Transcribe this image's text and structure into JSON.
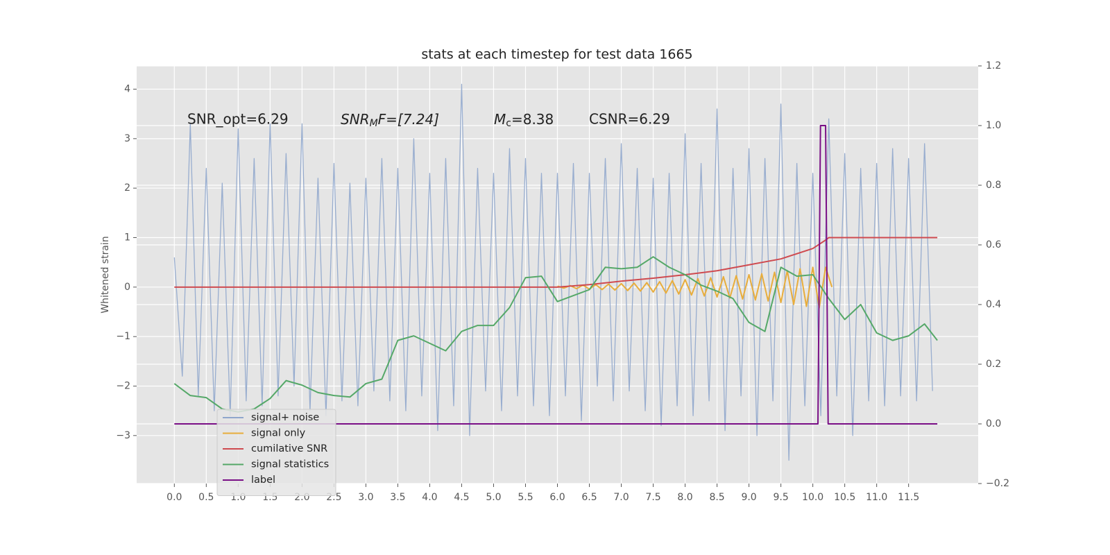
{
  "chart_data": {
    "type": "line",
    "title": "stats at each timestep for test data 1665",
    "ylabel": "Whitened strain",
    "xlim": [
      -0.59,
      12.59
    ],
    "ylim": [
      -3.97,
      4.47
    ],
    "y2lim": [
      -0.2,
      1.2
    ],
    "grid": true,
    "legend": "lower left",
    "xticks": [
      {
        "value": 0,
        "label": "0.0"
      },
      {
        "value": 0.5,
        "label": "0.5"
      },
      {
        "value": 1,
        "label": "1.0"
      },
      {
        "value": 1.5,
        "label": "1.5"
      },
      {
        "value": 2,
        "label": "2.0"
      },
      {
        "value": 2.5,
        "label": "2.5"
      },
      {
        "value": 3,
        "label": "3.0"
      },
      {
        "value": 3.5,
        "label": "3.5"
      },
      {
        "value": 4,
        "label": "4.0"
      },
      {
        "value": 4.5,
        "label": "4.5"
      },
      {
        "value": 5,
        "label": "5.0"
      },
      {
        "value": 5.5,
        "label": "5.5"
      },
      {
        "value": 6,
        "label": "6.0"
      },
      {
        "value": 6.5,
        "label": "6.5"
      },
      {
        "value": 7,
        "label": "7.0"
      },
      {
        "value": 7.5,
        "label": "7.5"
      },
      {
        "value": 8,
        "label": "8.0"
      },
      {
        "value": 8.5,
        "label": "8.5"
      },
      {
        "value": 9,
        "label": "9.0"
      },
      {
        "value": 9.5,
        "label": "9.5"
      },
      {
        "value": 10,
        "label": "10.0"
      },
      {
        "value": 10.5,
        "label": "10.5"
      },
      {
        "value": 11,
        "label": "11.0"
      },
      {
        "value": 11.5,
        "label": "11.5"
      }
    ],
    "yticks": [
      {
        "value": -3,
        "label": "−3"
      },
      {
        "value": -2,
        "label": "−2"
      },
      {
        "value": -1,
        "label": "−1"
      },
      0,
      1,
      2,
      3,
      4
    ],
    "y2ticks": [
      {
        "value": -0.2,
        "label": "−0.2"
      },
      {
        "value": 0,
        "label": "0.0"
      },
      {
        "value": 0.2,
        "label": "0.2"
      },
      {
        "value": 0.4,
        "label": "0.4"
      },
      {
        "value": 0.6,
        "label": "0.6"
      },
      {
        "value": 0.8,
        "label": "0.8"
      },
      {
        "value": 1,
        "label": "1.0"
      },
      {
        "value": 1.2,
        "label": "1.2"
      }
    ],
    "annotations": [
      {
        "text": "SNR_opt=6.29"
      },
      {
        "parts": [
          "SNR",
          "M",
          "F=[7.24]"
        ]
      },
      {
        "parts": [
          "M",
          "c",
          "=8.38"
        ]
      },
      {
        "text": "CSNR=6.29"
      }
    ],
    "series": [
      {
        "name": "signal+ noise",
        "color": "#8fa6cc",
        "x": [
          0,
          0.125,
          0.25,
          0.375,
          0.5,
          0.625,
          0.75,
          0.875,
          1,
          1.125,
          1.25,
          1.375,
          1.5,
          1.625,
          1.75,
          1.875,
          2,
          2.125,
          2.25,
          2.375,
          2.5,
          2.625,
          2.75,
          2.875,
          3,
          3.125,
          3.25,
          3.375,
          3.5,
          3.625,
          3.75,
          3.875,
          4,
          4.125,
          4.25,
          4.375,
          4.5,
          4.625,
          4.75,
          4.875,
          5,
          5.125,
          5.25,
          5.375,
          5.5,
          5.625,
          5.75,
          5.875,
          6,
          6.125,
          6.25,
          6.375,
          6.5,
          6.625,
          6.75,
          6.875,
          7,
          7.125,
          7.25,
          7.375,
          7.5,
          7.625,
          7.75,
          7.875,
          8,
          8.125,
          8.25,
          8.375,
          8.5,
          8.625,
          8.75,
          8.875,
          9,
          9.125,
          9.25,
          9.375,
          9.5,
          9.625,
          9.75,
          9.875,
          10,
          10.125,
          10.25,
          10.375,
          10.5,
          10.625,
          10.75,
          10.875,
          11,
          11.125,
          11.25,
          11.375,
          11.5,
          11.625,
          11.75,
          11.875
        ],
        "values": [
          0.6,
          -1.8,
          3.3,
          -2.2,
          2.4,
          -2.5,
          2.1,
          -2.6,
          3.2,
          -2.3,
          2.6,
          -2.4,
          3.3,
          -2.2,
          2.7,
          -2.0,
          3.3,
          -2.5,
          2.2,
          -2.6,
          2.5,
          -2.3,
          2.1,
          -2.4,
          2.2,
          -2.1,
          2.6,
          -2.3,
          2.4,
          -2.5,
          3.0,
          -2.2,
          2.3,
          -2.9,
          2.6,
          -2.4,
          4.1,
          -3.0,
          2.4,
          -2.1,
          2.3,
          -2.5,
          2.8,
          -2.2,
          2.6,
          -2.4,
          2.3,
          -2.6,
          2.3,
          -2.2,
          2.5,
          -2.7,
          2.3,
          -2.0,
          2.6,
          -2.3,
          2.9,
          -2.1,
          2.4,
          -2.5,
          2.2,
          -2.8,
          2.3,
          -2.4,
          3.1,
          -2.6,
          2.5,
          -2.3,
          3.6,
          -2.9,
          2.4,
          -2.2,
          2.8,
          -3.0,
          2.6,
          -2.3,
          3.7,
          -3.5,
          2.5,
          -2.4,
          2.3,
          -2.6,
          3.4,
          -2.2,
          2.7,
          -3.0,
          2.4,
          -2.3,
          2.5,
          -2.4,
          2.8,
          -2.2,
          2.6,
          -2.3,
          2.9,
          -2.1
        ]
      },
      {
        "name": "signal only",
        "color": "#e8ad3c",
        "x": [
          6.0,
          6.1,
          6.2,
          6.3,
          6.4,
          6.5,
          6.6,
          6.7,
          6.8,
          6.9,
          7.0,
          7.1,
          7.2,
          7.3,
          7.4,
          7.5,
          7.6,
          7.7,
          7.8,
          7.9,
          8.0,
          8.1,
          8.2,
          8.3,
          8.4,
          8.5,
          8.6,
          8.7,
          8.8,
          8.9,
          9.0,
          9.1,
          9.2,
          9.3,
          9.4,
          9.5,
          9.6,
          9.7,
          9.8,
          9.9,
          10.0,
          10.1,
          10.2,
          10.3
        ],
        "values": [
          0.02,
          -0.02,
          0.03,
          -0.03,
          0.04,
          -0.04,
          0.05,
          -0.05,
          0.06,
          -0.06,
          0.07,
          -0.07,
          0.08,
          -0.08,
          0.09,
          -0.1,
          0.11,
          -0.12,
          0.13,
          -0.14,
          0.15,
          -0.16,
          0.17,
          -0.18,
          0.19,
          -0.2,
          0.21,
          -0.22,
          0.23,
          -0.24,
          0.25,
          -0.26,
          0.27,
          -0.28,
          0.3,
          -0.31,
          0.33,
          -0.35,
          0.37,
          -0.39,
          0.4,
          -0.42,
          0.4,
          0
        ]
      },
      {
        "name": "cumilative SNR",
        "color": "#cf4a4f",
        "x": [
          0,
          6,
          6.5,
          7,
          7.5,
          8,
          8.5,
          9,
          9.5,
          10,
          10.2,
          10.25,
          11.95
        ],
        "values": [
          0,
          0,
          0.05,
          0.12,
          0.18,
          0.25,
          0.33,
          0.45,
          0.57,
          0.78,
          0.95,
          1.0,
          1.0
        ]
      },
      {
        "name": "signal statistics",
        "color": "#55a868",
        "axis": "y2",
        "x": [
          0,
          0.25,
          0.5,
          0.75,
          1,
          1.25,
          1.5,
          1.75,
          2,
          2.25,
          2.5,
          2.75,
          3,
          3.25,
          3.5,
          3.75,
          4,
          4.25,
          4.5,
          4.75,
          5,
          5.25,
          5.5,
          5.75,
          6,
          6.25,
          6.5,
          6.75,
          7,
          7.25,
          7.5,
          7.75,
          8,
          8.25,
          8.5,
          8.75,
          9,
          9.25,
          9.5,
          9.75,
          10,
          10.25,
          10.5,
          10.75,
          11,
          11.25,
          11.5,
          11.75,
          11.95
        ],
        "values": [
          0.135,
          0.095,
          0.088,
          0.05,
          0.04,
          0.05,
          0.085,
          0.145,
          0.13,
          0.105,
          0.095,
          0.09,
          0.135,
          0.15,
          0.28,
          0.295,
          0.27,
          0.245,
          0.31,
          0.33,
          0.33,
          0.39,
          0.49,
          0.495,
          0.41,
          0.43,
          0.45,
          0.525,
          0.52,
          0.525,
          0.56,
          0.525,
          0.5,
          0.465,
          0.445,
          0.42,
          0.34,
          0.31,
          0.525,
          0.495,
          0.5,
          0.42,
          0.35,
          0.4,
          0.305,
          0.28,
          0.295,
          0.335,
          0.28
        ]
      },
      {
        "name": "label",
        "color": "#7a0f86",
        "axis": "y2",
        "x": [
          0,
          10.08,
          10.12,
          10.2,
          10.24,
          11.95
        ],
        "values": [
          0,
          0,
          1,
          1,
          0,
          0
        ]
      }
    ]
  }
}
